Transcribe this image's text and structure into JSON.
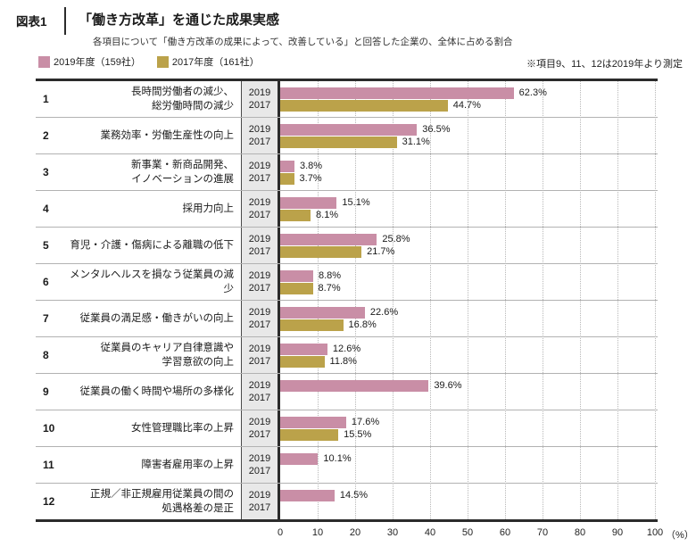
{
  "header": {
    "figure_label": "図表1",
    "title": "「働き方改革」を通じた成果実感",
    "subtitle": "各項目について「働き方改革の成果によって、改善している」と回答した企業の、全体に占める割合"
  },
  "note": "※項目9、11、12は2019年より測定",
  "axis": {
    "unit_label": "（%）"
  },
  "chart_data": {
    "type": "bar",
    "orientation": "horizontal-grouped",
    "unit": "%",
    "xlim": [
      0,
      100
    ],
    "x_ticks": [
      0,
      10,
      20,
      30,
      40,
      50,
      60,
      70,
      80,
      90,
      100
    ],
    "grid": "dotted-vertical-every-10",
    "legend_position": "top-left",
    "series": [
      {
        "name": "2019年度（159社）",
        "short": "2019",
        "color": "#c98ea6"
      },
      {
        "name": "2017年度（161社）",
        "short": "2017",
        "color": "#bba24a"
      }
    ],
    "rows": [
      {
        "num": "1",
        "label_lines": [
          "長時間労働者の減少、",
          "総労働時間の減少"
        ],
        "values": [
          62.3,
          44.7
        ]
      },
      {
        "num": "2",
        "label_lines": [
          "業務効率・労働生産性の向上"
        ],
        "values": [
          36.5,
          31.1
        ]
      },
      {
        "num": "3",
        "label_lines": [
          "新事業・新商品開発、",
          "イノベーションの進展"
        ],
        "values": [
          3.8,
          3.7
        ]
      },
      {
        "num": "4",
        "label_lines": [
          "採用力向上"
        ],
        "values": [
          15.1,
          8.1
        ]
      },
      {
        "num": "5",
        "label_lines": [
          "育児・介護・傷病による離職の低下"
        ],
        "values": [
          25.8,
          21.7
        ]
      },
      {
        "num": "6",
        "label_lines": [
          "メンタルヘルスを損なう従業員の減少"
        ],
        "values": [
          8.8,
          8.7
        ]
      },
      {
        "num": "7",
        "label_lines": [
          "従業員の満足感・働きがいの向上"
        ],
        "values": [
          22.6,
          16.8
        ]
      },
      {
        "num": "8",
        "label_lines": [
          "従業員のキャリア自律意識や",
          "学習意欲の向上"
        ],
        "values": [
          12.6,
          11.8
        ]
      },
      {
        "num": "9",
        "label_lines": [
          "従業員の働く時間や場所の多様化"
        ],
        "values": [
          39.6,
          null
        ]
      },
      {
        "num": "10",
        "label_lines": [
          "女性管理職比率の上昇"
        ],
        "values": [
          17.6,
          15.5
        ]
      },
      {
        "num": "11",
        "label_lines": [
          "障害者雇用率の上昇"
        ],
        "values": [
          10.1,
          null
        ]
      },
      {
        "num": "12",
        "label_lines": [
          "正規／非正規雇用従業員の間の",
          "処遇格差の是正"
        ],
        "values": [
          14.5,
          null
        ]
      }
    ]
  }
}
